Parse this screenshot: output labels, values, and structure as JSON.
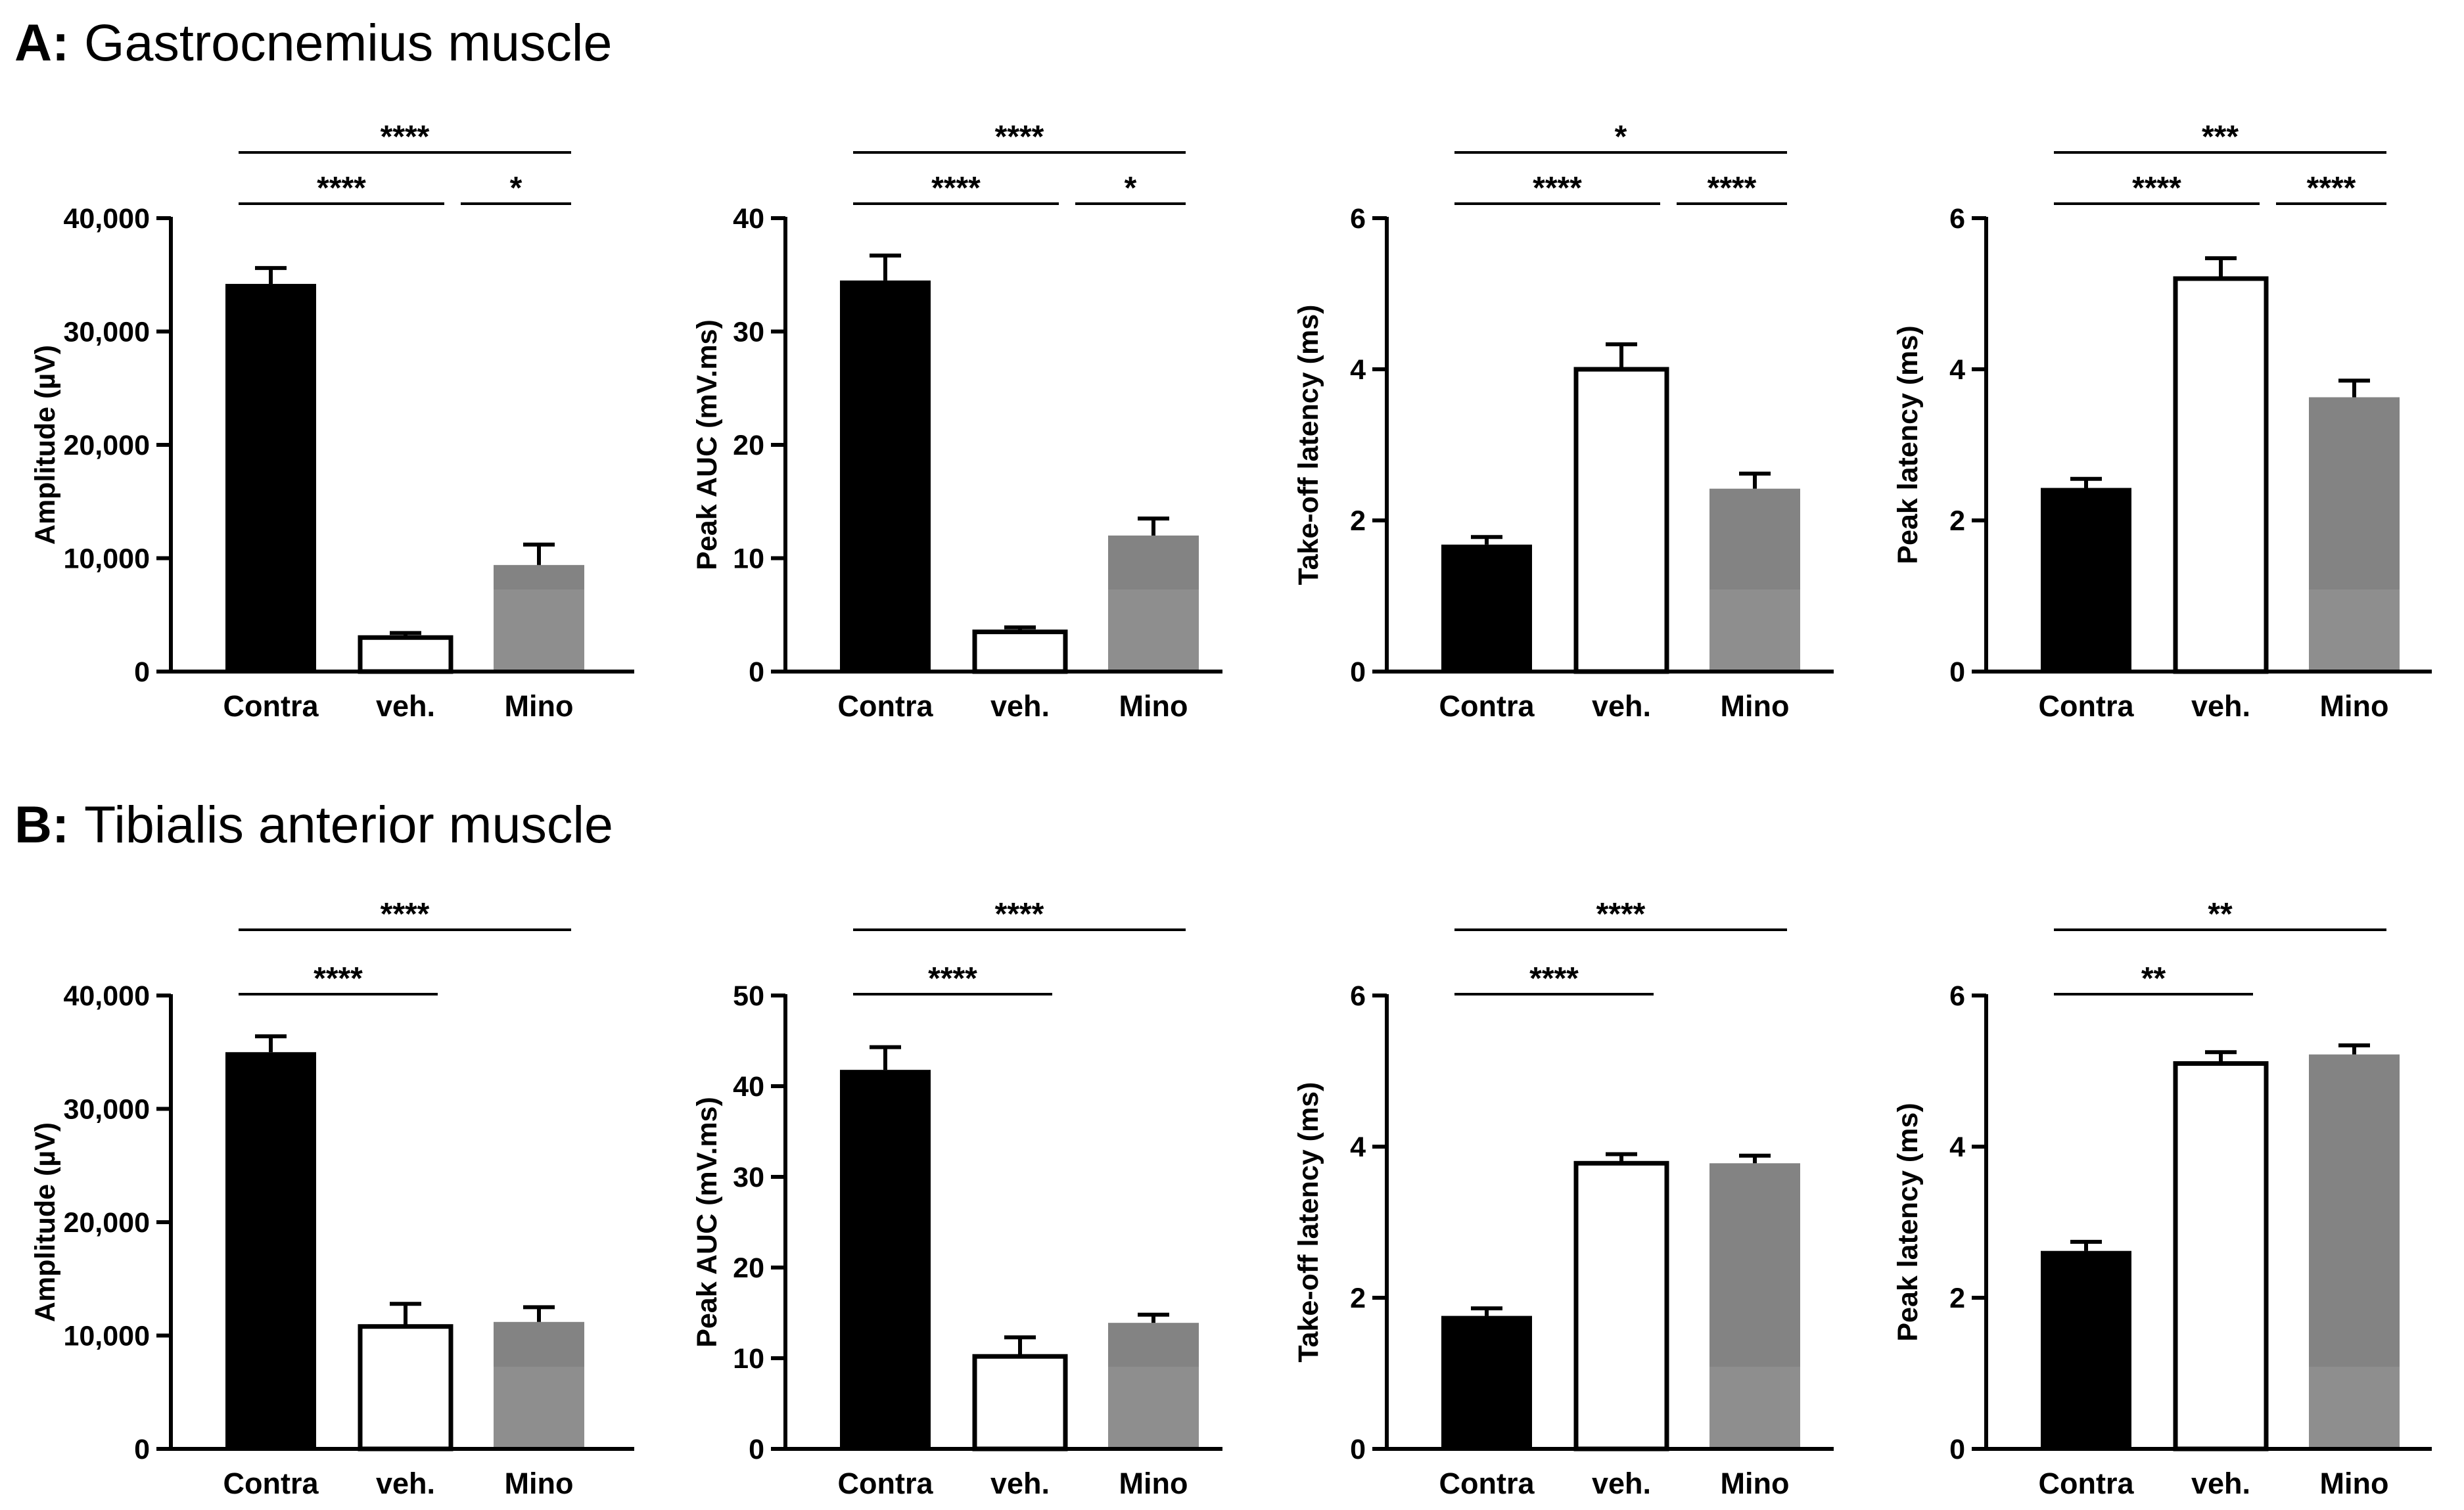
{
  "sections": [
    {
      "letter": "A:",
      "title": "Gastrocnemius muscle"
    },
    {
      "letter": "B:",
      "title": "Tibialis anterior muscle"
    }
  ],
  "colors": {
    "Contra": "#000000",
    "veh.": "#ffffff",
    "Mino": "#838383",
    "Mino_light": "#8e8e8e"
  },
  "chart_data": [
    {
      "type": "bar",
      "section": "A",
      "ylabel": "Amplitude (µV)",
      "categories": [
        "Contra",
        "veh.",
        "Mino"
      ],
      "values": [
        34200,
        3000,
        9400
      ],
      "errors": [
        1400,
        400,
        1800
      ],
      "ylim": [
        0,
        40000
      ],
      "yticks": [
        0,
        10000,
        20000,
        30000,
        40000
      ],
      "ytick_labels": [
        "0",
        "10,000",
        "20,000",
        "30,000",
        "40,000"
      ],
      "comparisons": [
        {
          "from": 0,
          "to": 1,
          "label": "****",
          "tier": 1
        },
        {
          "from": 1,
          "to": 2,
          "label": "*",
          "tier": 1
        },
        {
          "from": 0,
          "to": 2,
          "label": "****",
          "tier": 2
        }
      ]
    },
    {
      "type": "bar",
      "section": "A",
      "ylabel": "Peak AUC (mV.ms)",
      "categories": [
        "Contra",
        "veh.",
        "Mino"
      ],
      "values": [
        34.5,
        3.5,
        12
      ],
      "errors": [
        2.2,
        0.4,
        1.5
      ],
      "ylim": [
        0,
        40
      ],
      "yticks": [
        0,
        10,
        20,
        30,
        40
      ],
      "ytick_labels": [
        "0",
        "10",
        "20",
        "30",
        "40"
      ],
      "comparisons": [
        {
          "from": 0,
          "to": 1,
          "label": "****",
          "tier": 1
        },
        {
          "from": 1,
          "to": 2,
          "label": "*",
          "tier": 1
        },
        {
          "from": 0,
          "to": 2,
          "label": "****",
          "tier": 2
        }
      ]
    },
    {
      "type": "bar",
      "section": "A",
      "ylabel": "Take-off latency (ms)",
      "categories": [
        "Contra",
        "veh.",
        "Mino"
      ],
      "values": [
        1.68,
        4.0,
        2.42
      ],
      "errors": [
        0.1,
        0.33,
        0.2
      ],
      "ylim": [
        0,
        6
      ],
      "yticks": [
        0,
        2,
        4,
        6
      ],
      "ytick_labels": [
        "0",
        "2",
        "4",
        "6"
      ],
      "comparisons": [
        {
          "from": 0,
          "to": 1,
          "label": "****",
          "tier": 1
        },
        {
          "from": 1,
          "to": 2,
          "label": "****",
          "tier": 1
        },
        {
          "from": 0,
          "to": 2,
          "label": "*",
          "tier": 2
        }
      ]
    },
    {
      "type": "bar",
      "section": "A",
      "ylabel": "Peak latency (ms)",
      "categories": [
        "Contra",
        "veh.",
        "Mino"
      ],
      "values": [
        2.43,
        5.2,
        3.63
      ],
      "errors": [
        0.12,
        0.27,
        0.22
      ],
      "ylim": [
        0,
        6
      ],
      "yticks": [
        0,
        2,
        4,
        6
      ],
      "ytick_labels": [
        "0",
        "2",
        "4",
        "6"
      ],
      "comparisons": [
        {
          "from": 0,
          "to": 1,
          "label": "****",
          "tier": 1
        },
        {
          "from": 1,
          "to": 2,
          "label": "****",
          "tier": 1
        },
        {
          "from": 0,
          "to": 2,
          "label": "***",
          "tier": 2
        }
      ]
    },
    {
      "type": "bar",
      "section": "B",
      "ylabel": "Amplitude (µV)",
      "categories": [
        "Contra",
        "veh.",
        "Mino"
      ],
      "values": [
        35000,
        10800,
        11200
      ],
      "errors": [
        1400,
        2000,
        1300
      ],
      "ylim": [
        0,
        40000
      ],
      "yticks": [
        0,
        10000,
        20000,
        30000,
        40000
      ],
      "ytick_labels": [
        "0",
        "10,000",
        "20,000",
        "30,000",
        "40,000"
      ],
      "comparisons": [
        {
          "from": 0,
          "to": 1,
          "label": "****",
          "tier": 1
        },
        {
          "from": 0,
          "to": 2,
          "label": "****",
          "tier": 2
        }
      ]
    },
    {
      "type": "bar",
      "section": "B",
      "ylabel": "Peak AUC (mV.ms)",
      "categories": [
        "Contra",
        "veh.",
        "Mino"
      ],
      "values": [
        41.8,
        10.2,
        13.9
      ],
      "errors": [
        2.5,
        2.1,
        0.9
      ],
      "ylim": [
        0,
        50
      ],
      "yticks": [
        0,
        10,
        20,
        30,
        40,
        50
      ],
      "ytick_labels": [
        "0",
        "10",
        "20",
        "30",
        "40",
        "50"
      ],
      "comparisons": [
        {
          "from": 0,
          "to": 1,
          "label": "****",
          "tier": 1
        },
        {
          "from": 0,
          "to": 2,
          "label": "****",
          "tier": 2
        }
      ]
    },
    {
      "type": "bar",
      "section": "B",
      "ylabel": "Take-off latency (ms)",
      "categories": [
        "Contra",
        "veh.",
        "Mino"
      ],
      "values": [
        1.76,
        3.78,
        3.78
      ],
      "errors": [
        0.1,
        0.12,
        0.1
      ],
      "ylim": [
        0,
        6
      ],
      "yticks": [
        0,
        2,
        4,
        6
      ],
      "ytick_labels": [
        "0",
        "2",
        "4",
        "6"
      ],
      "comparisons": [
        {
          "from": 0,
          "to": 1,
          "label": "****",
          "tier": 1
        },
        {
          "from": 0,
          "to": 2,
          "label": "****",
          "tier": 2
        }
      ]
    },
    {
      "type": "bar",
      "section": "B",
      "ylabel": "Peak latency (ms)",
      "categories": [
        "Contra",
        "veh.",
        "Mino"
      ],
      "values": [
        2.62,
        5.1,
        5.22
      ],
      "errors": [
        0.12,
        0.15,
        0.12
      ],
      "ylim": [
        0,
        6
      ],
      "yticks": [
        0,
        2,
        4,
        6
      ],
      "ytick_labels": [
        "0",
        "2",
        "4",
        "6"
      ],
      "comparisons": [
        {
          "from": 0,
          "to": 1,
          "label": "**",
          "tier": 1
        },
        {
          "from": 0,
          "to": 2,
          "label": "**",
          "tier": 2
        }
      ]
    }
  ]
}
